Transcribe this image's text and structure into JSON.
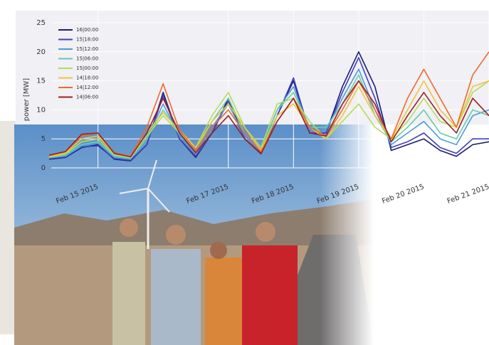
{
  "chart_data": {
    "type": "line",
    "y_label": "power [MW]",
    "ylim": [
      0,
      25
    ],
    "yticks": [
      0,
      5,
      10,
      15,
      20,
      25
    ],
    "grid": true,
    "legend": "upper left",
    "categories": [
      null,
      null,
      null,
      "Feb 15 2015",
      null,
      null,
      null,
      null,
      null,
      null,
      null,
      "Feb 17 2015",
      null,
      null,
      null,
      "Feb 18 2015",
      null,
      null,
      null,
      "Feb 19 2015",
      null,
      null,
      null,
      "Feb 20 2015",
      null,
      null,
      null,
      "Feb 21 2015"
    ],
    "series": [
      {
        "name": "16|00:00",
        "color": "#1c1c7a",
        "values": [
          1.5,
          1.8,
          3.5,
          4,
          1.5,
          1.2,
          4,
          13,
          5,
          1.8,
          6,
          12,
          5,
          2.5,
          9,
          15,
          6,
          6,
          14,
          20,
          14,
          3,
          4,
          5,
          3,
          2,
          4,
          4.5
        ]
      },
      {
        "name": "15|18:00",
        "color": "#4040b8",
        "values": [
          1.6,
          1.9,
          3.6,
          3.8,
          1.6,
          1.3,
          4,
          12.5,
          5,
          2,
          6,
          11.5,
          5,
          2.6,
          9,
          15.5,
          6,
          6,
          13,
          19,
          12,
          3.5,
          4.5,
          6,
          3.5,
          2.5,
          5,
          5
        ]
      },
      {
        "name": "15|12:00",
        "color": "#4b9bdc",
        "values": [
          1.7,
          2,
          3.8,
          4.2,
          1.8,
          1.5,
          5,
          11,
          5.5,
          2.5,
          7,
          11,
          5.5,
          3,
          10,
          14,
          6.5,
          6.5,
          12,
          17,
          10,
          4,
          6,
          8,
          5,
          4,
          9,
          10
        ]
      },
      {
        "name": "15|06:00",
        "color": "#66cda6",
        "values": [
          1.8,
          2.2,
          4,
          4.5,
          2,
          1.6,
          5,
          10,
          6,
          3,
          8,
          12,
          6,
          3,
          10,
          13,
          7,
          7,
          11,
          16,
          9,
          4.5,
          7,
          10,
          6,
          5,
          10,
          9
        ]
      },
      {
        "name": "15|00:00",
        "color": "#b4dc5a",
        "values": [
          1.9,
          2.4,
          4.5,
          5,
          2.2,
          1.8,
          5.5,
          9,
          6,
          3.5,
          9,
          13,
          7,
          3.5,
          11,
          12,
          8,
          5,
          8,
          11,
          7,
          5,
          8,
          12,
          8,
          7,
          13,
          15
        ]
      },
      {
        "name": "14|18:00",
        "color": "#f0c43c",
        "values": [
          2,
          2.6,
          5,
          5.5,
          2.5,
          2,
          6,
          9.5,
          6.5,
          3.5,
          8,
          11,
          7,
          3,
          9,
          11,
          7,
          5,
          9,
          14,
          9,
          5,
          10,
          15,
          10,
          7,
          14,
          15
        ]
      },
      {
        "name": "14|12:00",
        "color": "#ee6a2c",
        "values": [
          2.1,
          2.8,
          5.5,
          6,
          2.6,
          2,
          7,
          14.5,
          6.5,
          3,
          7,
          10,
          6,
          2.8,
          8,
          12,
          7,
          5.5,
          10,
          15,
          10,
          5,
          12,
          17,
          12,
          7,
          16,
          20
        ]
      },
      {
        "name": "14|06:00",
        "color": "#9c2020",
        "values": [
          2.2,
          2.8,
          5.8,
          6,
          2.5,
          1.9,
          6,
          12,
          6,
          2.6,
          6,
          9,
          5,
          2.4,
          8,
          12,
          6,
          5.5,
          11,
          15,
          11,
          4.5,
          9,
          13,
          9,
          6,
          12,
          9
        ]
      }
    ]
  }
}
